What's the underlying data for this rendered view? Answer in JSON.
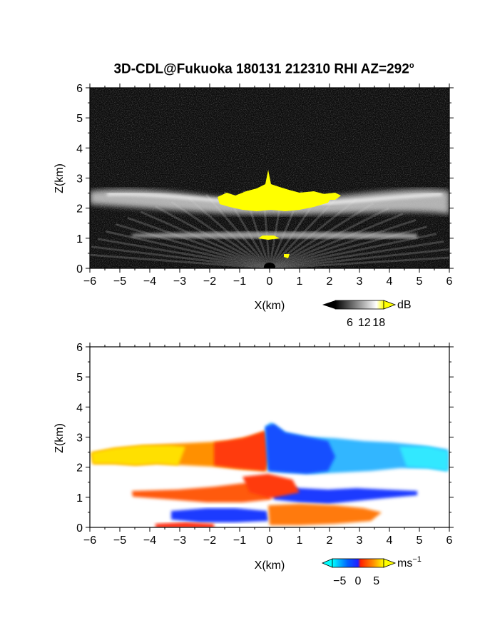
{
  "title": "3D-CDL@Fukuoka 180131 212310 RHI AZ=292",
  "title_degree": "o",
  "chart_data": [
    {
      "type": "heatmap",
      "panel": "reflectivity",
      "xlabel": "X(km)",
      "ylabel": "Z(km)",
      "xlim": [
        -6,
        6
      ],
      "ylim": [
        0,
        6
      ],
      "xticks": [
        -6,
        -5,
        -4,
        -3,
        -2,
        -1,
        0,
        1,
        2,
        3,
        4,
        5,
        6
      ],
      "yticks": [
        0,
        1,
        2,
        3,
        4,
        5,
        6
      ],
      "colorbar": {
        "unit": "dB",
        "ticks": [
          6,
          12,
          18
        ],
        "range": [
          0,
          20
        ],
        "colors": [
          "#000000",
          "#ffffff",
          "#ffff00"
        ]
      },
      "layers": [
        {
          "name": "cloud-layer",
          "x_range": [
            -6,
            6
          ],
          "z_center": 2.3,
          "thickness": 0.7,
          "level_db": 12
        },
        {
          "name": "core",
          "x_range": [
            -1.8,
            2.4
          ],
          "z_range": [
            1.9,
            2.6
          ],
          "level_db": 19
        },
        {
          "name": "peak",
          "x": 0.05,
          "z_top": 3.4
        },
        {
          "name": "lower-layer",
          "x_range": [
            -4.7,
            5.0
          ],
          "z_center": 1.1,
          "level_db": 10
        }
      ]
    },
    {
      "type": "heatmap",
      "panel": "doppler-velocity",
      "xlabel": "X(km)",
      "ylabel": "Z(km)",
      "xlim": [
        -6,
        6
      ],
      "ylim": [
        0,
        6
      ],
      "xticks": [
        -6,
        -5,
        -4,
        -3,
        -2,
        -1,
        0,
        1,
        2,
        3,
        4,
        5,
        6
      ],
      "yticks": [
        0,
        1,
        2,
        3,
        4,
        5,
        6
      ],
      "colorbar": {
        "unit": "ms",
        "unit_exp": "−1",
        "ticks": [
          -5,
          0,
          5
        ],
        "tick_labels": [
          "−5",
          "0",
          "5"
        ],
        "range": [
          -7,
          7
        ]
      },
      "layers": [
        {
          "name": "upper-left",
          "x_range": [
            -6,
            0
          ],
          "z_range": [
            2.0,
            2.7
          ],
          "velocity": [
            6,
            2
          ]
        },
        {
          "name": "upper-right",
          "x_range": [
            0,
            6
          ],
          "z_range": [
            1.9,
            2.9
          ],
          "velocity": [
            -2,
            -5
          ]
        },
        {
          "name": "mid-left",
          "x_range": [
            -4.6,
            -0.3
          ],
          "z_range": [
            0.9,
            1.2
          ],
          "velocity": 3
        },
        {
          "name": "mid-right",
          "x_range": [
            0.5,
            4.9
          ],
          "z_range": [
            0.8,
            1.2
          ],
          "velocity": -6
        },
        {
          "name": "low-left",
          "x_range": [
            -3.5,
            -0.2
          ],
          "z_range": [
            0.2,
            0.5
          ],
          "velocity": -6
        },
        {
          "name": "low-right",
          "x_range": [
            0,
            3.2
          ],
          "z_range": [
            0.2,
            0.7
          ],
          "velocity": 3
        }
      ]
    }
  ]
}
